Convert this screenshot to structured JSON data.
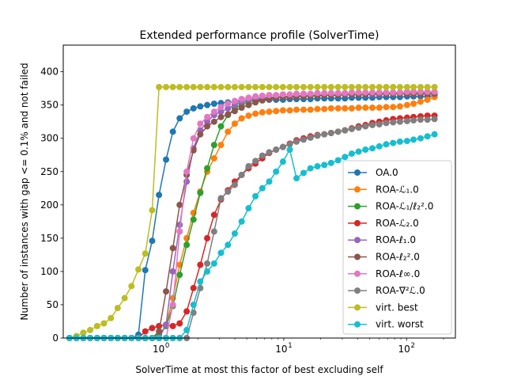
{
  "chart_data": {
    "type": "line",
    "title": "Extended performance profile (SolverTime)",
    "xlabel": "SolverTime at most this factor of best excluding self",
    "ylabel": "Number of instances with gap <= 0.1% and not failed",
    "xscale": "log",
    "xlim": [
      0.16,
      250
    ],
    "ylim": [
      0,
      440
    ],
    "xticks": [
      {
        "value": 1,
        "label": "10",
        "exp": "0"
      },
      {
        "value": 10,
        "label": "10",
        "exp": "1"
      },
      {
        "value": 100,
        "label": "10",
        "exp": "2"
      }
    ],
    "yticks": [
      {
        "value": 0,
        "label": "0"
      },
      {
        "value": 50,
        "label": "50"
      },
      {
        "value": 100,
        "label": "100"
      },
      {
        "value": 150,
        "label": "150"
      },
      {
        "value": 200,
        "label": "200"
      },
      {
        "value": 250,
        "label": "250"
      },
      {
        "value": 300,
        "label": "300"
      },
      {
        "value": 350,
        "label": "350"
      },
      {
        "value": 400,
        "label": "400"
      }
    ],
    "legend_position": "lower-right",
    "x": [
      0.18,
      0.205,
      0.233,
      0.265,
      0.302,
      0.343,
      0.391,
      0.444,
      0.506,
      0.575,
      0.655,
      0.745,
      0.848,
      0.964,
      1.1,
      1.25,
      1.42,
      1.62,
      1.84,
      2.09,
      2.38,
      2.71,
      3.08,
      3.51,
      3.99,
      4.54,
      5.17,
      5.88,
      6.69,
      7.61,
      8.66,
      9.85,
      11.2,
      12.7,
      14.5,
      16.5,
      18.8,
      21.4,
      24.3,
      27.7,
      31.5,
      35.8,
      40.7,
      46.3,
      52.7,
      60.0,
      68.3,
      77.7,
      88.4,
      101,
      114,
      130,
      148,
      169
    ],
    "series": [
      {
        "name": "OA.0",
        "color": "#1f77b4",
        "values": [
          0,
          0,
          0,
          0,
          0,
          0,
          0,
          0,
          0,
          0,
          5,
          102,
          146,
          215,
          268,
          310,
          330,
          340,
          345,
          348,
          350,
          352,
          353,
          354,
          355,
          356,
          356,
          357,
          357,
          358,
          358,
          358,
          359,
          359,
          359,
          359,
          360,
          360,
          360,
          360,
          360,
          361,
          361,
          361,
          361,
          362,
          362,
          362,
          362,
          363,
          363,
          363,
          363,
          364
        ]
      },
      {
        "name": "ROA-ℒ₁.0",
        "color": "#ff7f0e",
        "values": [
          0,
          0,
          0,
          0,
          0,
          0,
          0,
          0,
          0,
          0,
          0,
          0,
          0,
          0,
          20,
          60,
          110,
          150,
          188,
          220,
          250,
          270,
          290,
          310,
          322,
          330,
          334,
          337,
          339,
          340,
          341,
          342,
          342,
          343,
          343,
          343,
          344,
          344,
          345,
          345,
          345,
          345,
          346,
          346,
          346,
          346,
          347,
          347,
          348,
          350,
          352,
          355,
          358,
          362
        ]
      },
      {
        "name": "ROA-ℒ₁/ℓ₂².0",
        "color": "#2ca02c",
        "values": [
          0,
          0,
          0,
          0,
          0,
          0,
          0,
          0,
          0,
          0,
          0,
          0,
          0,
          5,
          18,
          48,
          95,
          140,
          178,
          218,
          255,
          290,
          318,
          335,
          345,
          351,
          355,
          358,
          359,
          360,
          361,
          362,
          362,
          363,
          363,
          364,
          364,
          365,
          365,
          365,
          366,
          366,
          366,
          366,
          367,
          367,
          367,
          367,
          367,
          367,
          368,
          368,
          368,
          368
        ]
      },
      {
        "name": "ROA-ℒ₂.0",
        "color": "#d62728",
        "values": [
          0,
          0,
          0,
          0,
          0,
          0,
          0,
          0,
          0,
          0,
          0,
          10,
          15,
          18,
          20,
          18,
          22,
          40,
          75,
          110,
          150,
          185,
          208,
          222,
          235,
          245,
          255,
          262,
          270,
          278,
          283,
          287,
          292,
          297,
          300,
          303,
          305,
          306,
          308,
          310,
          312,
          315,
          318,
          320,
          323,
          325,
          327,
          329,
          330,
          331,
          332,
          333,
          334,
          334
        ]
      },
      {
        "name": "ROA-ℓ₁.0",
        "color": "#9467bd",
        "values": [
          0,
          0,
          0,
          0,
          0,
          0,
          0,
          0,
          0,
          0,
          0,
          0,
          0,
          0,
          20,
          100,
          170,
          235,
          285,
          312,
          325,
          335,
          340,
          345,
          350,
          355,
          358,
          360,
          361,
          362,
          362,
          363,
          363,
          364,
          364,
          364,
          365,
          365,
          365,
          365,
          366,
          366,
          366,
          366,
          366,
          366,
          367,
          367,
          367,
          367,
          367,
          367,
          367,
          367
        ]
      },
      {
        "name": "ROA-ℓ₂².0",
        "color": "#8c564b",
        "values": [
          0,
          0,
          0,
          0,
          0,
          0,
          0,
          0,
          0,
          0,
          0,
          0,
          0,
          10,
          70,
          135,
          200,
          245,
          282,
          306,
          318,
          325,
          332,
          336,
          341,
          346,
          350,
          354,
          357,
          359,
          361,
          362,
          362,
          363,
          363,
          364,
          364,
          365,
          365,
          365,
          366,
          366,
          366,
          366,
          367,
          367,
          367,
          367,
          367,
          367,
          367,
          367,
          367,
          367
        ]
      },
      {
        "name": "ROA-ℓ∞.0",
        "color": "#e377c2",
        "values": [
          0,
          0,
          0,
          0,
          0,
          0,
          0,
          0,
          0,
          0,
          0,
          0,
          0,
          0,
          0,
          50,
          160,
          250,
          300,
          322,
          332,
          340,
          347,
          352,
          356,
          359,
          361,
          363,
          364,
          365,
          365,
          366,
          366,
          367,
          367,
          367,
          368,
          368,
          368,
          368,
          368,
          369,
          369,
          369,
          369,
          369,
          369,
          369,
          369,
          370,
          370,
          370,
          370,
          370
        ]
      },
      {
        "name": "ROA-∇²ℒ.0",
        "color": "#7f7f7f",
        "values": [
          0,
          0,
          0,
          0,
          0,
          0,
          0,
          0,
          0,
          0,
          0,
          0,
          0,
          0,
          0,
          0,
          0,
          0,
          38,
          75,
          112,
          160,
          210,
          220,
          230,
          245,
          258,
          266,
          274,
          279,
          283,
          287,
          291,
          295,
          298,
          301,
          304,
          306,
          308,
          310,
          312,
          314,
          316,
          318,
          320,
          321,
          323,
          324,
          325,
          326,
          327,
          328,
          328,
          329
        ]
      },
      {
        "name": "virt. best",
        "color": "#bcbd22",
        "values": [
          0,
          3,
          8,
          12,
          18,
          22,
          30,
          45,
          60,
          78,
          103,
          127,
          192,
          377,
          377,
          377,
          377,
          377,
          377,
          377,
          377,
          377,
          377,
          377,
          377,
          377,
          377,
          377,
          377,
          377,
          377,
          377,
          377,
          377,
          377,
          377,
          377,
          377,
          377,
          377,
          377,
          377,
          377,
          377,
          377,
          377,
          377,
          377,
          377,
          377,
          377,
          377,
          377,
          377
        ]
      },
      {
        "name": "virt. worst",
        "color": "#17becf",
        "values": [
          0,
          0,
          0,
          0,
          0,
          0,
          0,
          0,
          0,
          0,
          0,
          0,
          0,
          0,
          0,
          0,
          0,
          12,
          50,
          85,
          100,
          112,
          128,
          140,
          157,
          175,
          195,
          213,
          225,
          235,
          250,
          265,
          283,
          240,
          248,
          255,
          258,
          260,
          263,
          267,
          272,
          277,
          280,
          283,
          285,
          288,
          291,
          293,
          295,
          296,
          298,
          300,
          303,
          306
        ]
      }
    ]
  }
}
